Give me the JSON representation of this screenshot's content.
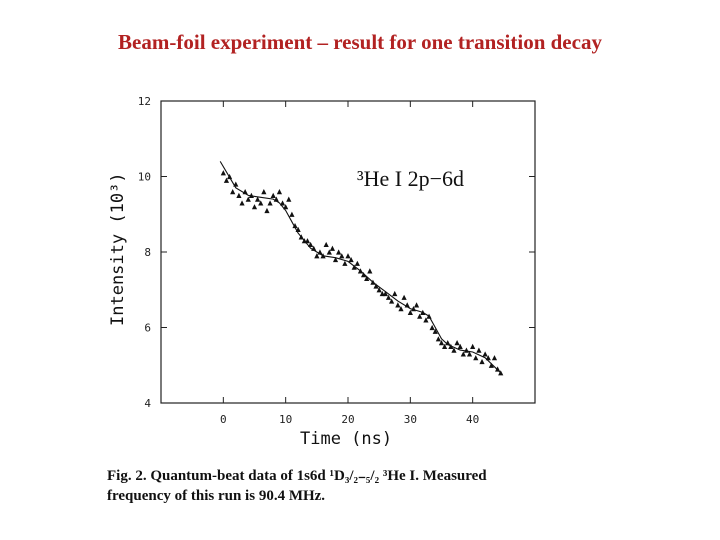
{
  "slide": {
    "title": "Beam-foil experiment – result for one transition decay"
  },
  "caption": {
    "line1": "Fig. 2. Quantum-beat data of 1s6d ¹D₃/₂₋₅/₂ ³He I. Measured",
    "line2": "frequency of this run is 90.4 MHz."
  },
  "chart_data": {
    "type": "scatter",
    "annotation_text": "³He I   2p−6d",
    "xlabel": "Time  (ns)",
    "ylabel": "Intensity  (10³)",
    "xlim": [
      -10,
      50
    ],
    "ylim": [
      4,
      12
    ],
    "xticks": [
      "0",
      "10",
      "20",
      "30",
      "40"
    ],
    "yticks": [
      "4",
      "6",
      "8",
      "10",
      "12"
    ],
    "series": [
      {
        "marker": "triangle",
        "x": [
          0.0,
          0.5,
          1.0,
          1.5,
          2.0,
          2.5,
          3.0,
          3.5,
          4.0,
          4.5,
          5.0,
          5.5,
          6.0,
          6.5,
          7.0,
          7.5,
          8.0,
          8.5,
          9.0,
          9.5,
          10.0,
          10.5,
          11.0,
          11.5,
          12.0,
          12.5,
          13.0,
          13.5,
          14.0,
          14.5,
          15.0,
          15.5,
          16.0,
          16.5,
          17.0,
          17.5,
          18.0,
          18.5,
          19.0,
          19.5,
          20.0,
          20.5,
          21.0,
          21.5,
          22.0,
          22.5,
          23.0,
          23.5,
          24.0,
          24.5,
          25.0,
          25.5,
          26.0,
          26.5,
          27.0,
          27.5,
          28.0,
          28.5,
          29.0,
          29.5,
          30.0,
          30.5,
          31.0,
          31.5,
          32.0,
          32.5,
          33.0,
          33.5,
          34.0,
          34.5,
          35.0,
          35.5,
          36.0,
          36.5,
          37.0,
          37.5,
          38.0,
          38.5,
          39.0,
          39.5,
          40.0,
          40.5,
          41.0,
          41.5,
          42.0,
          42.5,
          43.0,
          43.5,
          44.0,
          44.5
        ],
        "y": [
          10.1,
          9.9,
          10.0,
          9.6,
          9.8,
          9.5,
          9.3,
          9.6,
          9.4,
          9.5,
          9.2,
          9.4,
          9.3,
          9.6,
          9.1,
          9.3,
          9.5,
          9.4,
          9.6,
          9.3,
          9.2,
          9.4,
          9.0,
          8.7,
          8.6,
          8.4,
          8.3,
          8.3,
          8.2,
          8.1,
          7.9,
          8.0,
          7.9,
          8.2,
          8.0,
          8.1,
          7.8,
          8.0,
          7.9,
          7.7,
          7.9,
          7.8,
          7.6,
          7.7,
          7.5,
          7.4,
          7.3,
          7.5,
          7.2,
          7.1,
          7.0,
          6.9,
          6.9,
          6.8,
          6.7,
          6.9,
          6.6,
          6.5,
          6.8,
          6.6,
          6.4,
          6.5,
          6.6,
          6.3,
          6.4,
          6.2,
          6.3,
          6.0,
          5.9,
          5.7,
          5.6,
          5.5,
          5.6,
          5.5,
          5.4,
          5.6,
          5.5,
          5.3,
          5.4,
          5.3,
          5.5,
          5.2,
          5.4,
          5.1,
          5.3,
          5.2,
          5.0,
          5.2,
          4.9,
          4.8
        ]
      },
      {
        "name": "",
        "marker": "line",
        "x": [
          -0.5,
          2,
          4,
          6,
          8,
          9,
          10,
          11,
          12,
          13,
          14,
          15,
          16,
          18,
          20,
          22,
          24,
          26,
          28,
          30,
          31,
          32,
          33,
          34,
          35,
          36,
          38,
          40,
          42,
          44.5
        ],
        "y": [
          10.4,
          9.7,
          9.5,
          9.45,
          9.4,
          9.3,
          9.1,
          8.8,
          8.5,
          8.3,
          8.1,
          8.0,
          7.9,
          7.85,
          7.75,
          7.5,
          7.2,
          6.95,
          6.7,
          6.5,
          6.45,
          6.4,
          6.3,
          6.0,
          5.7,
          5.55,
          5.4,
          5.35,
          5.2,
          4.8
        ]
      }
    ]
  }
}
